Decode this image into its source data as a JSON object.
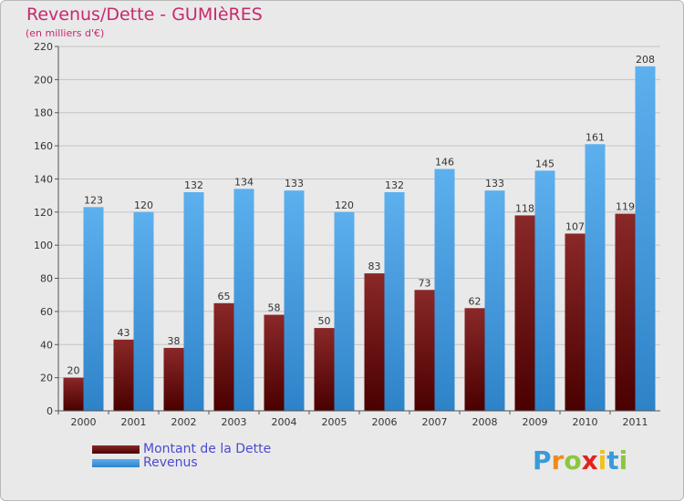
{
  "header": {
    "title": "Revenus/Dette - GUMIèRES",
    "subtitle": "(en milliers d'€)"
  },
  "chart_data": {
    "type": "bar",
    "categories": [
      "2000",
      "2001",
      "2002",
      "2003",
      "2004",
      "2005",
      "2006",
      "2007",
      "2008",
      "2009",
      "2010",
      "2011"
    ],
    "series": [
      {
        "name": "Montant de la Dette",
        "values": [
          20,
          43,
          38,
          65,
          58,
          50,
          83,
          73,
          62,
          118,
          107,
          119
        ],
        "color": "#6e1414"
      },
      {
        "name": "Revenus",
        "values": [
          123,
          120,
          132,
          134,
          133,
          120,
          132,
          146,
          133,
          145,
          161,
          208
        ],
        "color": "#4ea6e6"
      }
    ],
    "yticks": [
      0,
      20,
      40,
      60,
      80,
      100,
      120,
      140,
      160,
      180,
      200,
      220
    ],
    "ylim": [
      0,
      220
    ],
    "grid": true,
    "legend_position": "bottom-left"
  },
  "legend": {
    "items": [
      {
        "label": "Montant de la Dette",
        "color": "#6e1414"
      },
      {
        "label": "Revenus",
        "color": "#4ea6e6"
      }
    ]
  },
  "logo": {
    "letters": [
      "P",
      "r",
      "o",
      "x",
      "i",
      "t",
      "i"
    ],
    "colors": [
      "#3a9ad9",
      "#f08a1e",
      "#8cc63f",
      "#e2231a",
      "#f0c020",
      "#3a9ad9",
      "#8cc63f"
    ]
  }
}
